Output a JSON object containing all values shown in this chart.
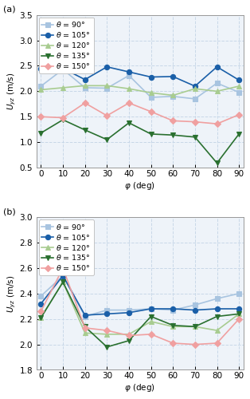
{
  "x": [
    0,
    10,
    20,
    30,
    40,
    50,
    60,
    70,
    80,
    90
  ],
  "panel_a": {
    "theta_90": [
      2.1,
      2.43,
      2.07,
      2.06,
      2.31,
      1.88,
      1.9,
      1.85,
      2.16,
      1.98
    ],
    "theta_105": [
      2.45,
      2.45,
      2.23,
      2.48,
      2.38,
      2.28,
      2.29,
      2.1,
      2.48,
      2.22
    ],
    "theta_120": [
      2.03,
      2.07,
      2.11,
      2.11,
      2.05,
      1.97,
      1.92,
      2.05,
      2.0,
      2.1
    ],
    "theta_135": [
      1.18,
      1.44,
      1.24,
      1.05,
      1.38,
      1.16,
      1.14,
      1.1,
      0.59,
      1.16
    ],
    "theta_150": [
      1.5,
      1.48,
      1.77,
      1.52,
      1.77,
      1.6,
      1.42,
      1.4,
      1.36,
      1.54
    ]
  },
  "panel_b": {
    "theta_90": [
      2.38,
      2.54,
      2.22,
      2.27,
      2.27,
      2.28,
      2.27,
      2.31,
      2.36,
      2.4
    ],
    "theta_105": [
      2.32,
      2.54,
      2.23,
      2.24,
      2.25,
      2.28,
      2.28,
      2.27,
      2.28,
      2.28
    ],
    "theta_120": [
      2.21,
      2.49,
      2.09,
      2.08,
      2.08,
      2.18,
      2.14,
      2.14,
      2.11,
      2.24
    ],
    "theta_135": [
      2.21,
      2.49,
      2.14,
      1.98,
      2.03,
      2.22,
      2.15,
      2.14,
      2.22,
      2.24
    ],
    "theta_150": [
      2.26,
      2.6,
      2.13,
      2.11,
      2.07,
      2.08,
      2.01,
      2.0,
      2.01,
      2.2
    ]
  },
  "colors": {
    "theta_90": "#a8c4e0",
    "theta_105": "#1a5fa8",
    "theta_120": "#a8cc90",
    "theta_135": "#2a7030",
    "theta_150": "#f0a0a0"
  },
  "markers": {
    "theta_90": "s",
    "theta_105": "o",
    "theta_120": "^",
    "theta_135": "v",
    "theta_150": "D"
  },
  "markerfacecolors": {
    "theta_90": "#a8c4e0",
    "theta_105": "#1a5fa8",
    "theta_120": "#a8cc90",
    "theta_135": "#2a7030",
    "theta_150": "#f0a0a0"
  },
  "legend_labels": [
    "$\\theta$ = 90°",
    "$\\theta$ = 105°",
    "$\\theta$ = 120°",
    "$\\theta$ = 135°",
    "$\\theta$ = 150°"
  ],
  "panel_a_ylim": [
    0.5,
    3.5
  ],
  "panel_a_yticks": [
    0.5,
    1.0,
    1.5,
    2.0,
    2.5,
    3.0,
    3.5
  ],
  "panel_b_ylim": [
    1.8,
    3.0
  ],
  "panel_b_yticks": [
    1.8,
    2.0,
    2.2,
    2.4,
    2.6,
    2.8,
    3.0
  ],
  "xlabel": "$\\varphi$ (deg)",
  "ylabel_a": "$U_{yz}$ (m/s)",
  "ylabel_b": "$U_{yz}$ (m/s)",
  "xticks": [
    0,
    10,
    20,
    30,
    40,
    50,
    60,
    70,
    80,
    90
  ],
  "grid_color": "#c8d8e8",
  "background_color": "#eef3f9",
  "markersize": 4.5,
  "linewidth": 1.2,
  "fontsize": 7.5,
  "legend_fontsize": 6.8
}
